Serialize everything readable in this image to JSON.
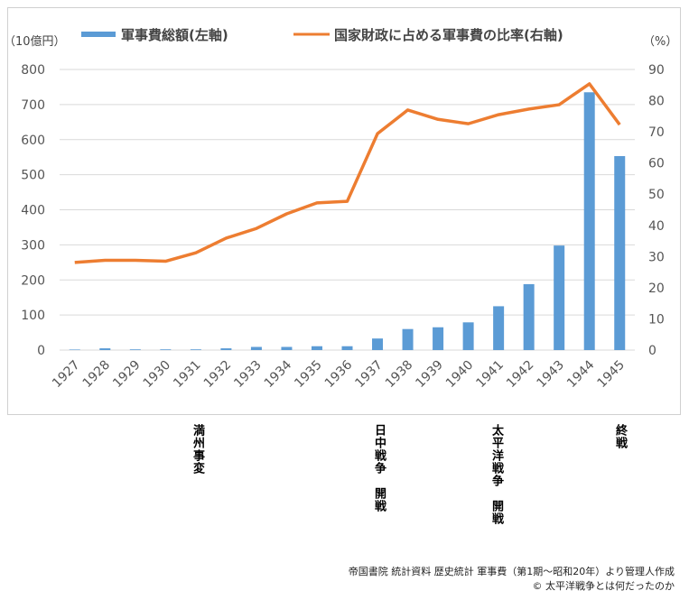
{
  "chart_data": {
    "type": "bar+line",
    "categories": [
      "1927",
      "1928",
      "1929",
      "1930",
      "1931",
      "1932",
      "1933",
      "1934",
      "1935",
      "1936",
      "1937",
      "1938",
      "1939",
      "1940",
      "1941",
      "1942",
      "1943",
      "1944",
      "1945"
    ],
    "series": [
      {
        "name": "軍事費総額(左軸)",
        "type": "bar",
        "axis": "left",
        "color": "#5b9bd5",
        "values": [
          1.5,
          5,
          2,
          2,
          2,
          5,
          9,
          9,
          11,
          11,
          33,
          60,
          65,
          79,
          125,
          188,
          298,
          735,
          553
        ]
      },
      {
        "name": "国家財政に占める軍事費の比率(右軸)",
        "type": "line",
        "axis": "right",
        "color": "#ed7d31",
        "values": [
          28.1,
          28.8,
          28.8,
          28.5,
          31.2,
          35.9,
          39,
          43.7,
          47.2,
          47.7,
          69.4,
          77,
          74,
          72.6,
          75.5,
          77.3,
          78.7,
          85.4,
          72.3
        ]
      }
    ],
    "left_axis": {
      "label": "（10億円）",
      "ylim": [
        0,
        800
      ],
      "ticks": [
        "0",
        "100",
        "200",
        "300",
        "400",
        "500",
        "600",
        "700",
        "800"
      ]
    },
    "right_axis": {
      "label": "（%）",
      "ylim": [
        0,
        90
      ],
      "ticks": [
        "0",
        "10",
        "20",
        "30",
        "40",
        "50",
        "60",
        "70",
        "80",
        "90"
      ]
    },
    "grid": true,
    "legend_position": "top"
  },
  "annotations": [
    {
      "text": "満州事変",
      "year": "1931"
    },
    {
      "text": "日中戦争　開戦",
      "year": "1937"
    },
    {
      "text": "太平洋戦争　開戦",
      "year": "1941"
    },
    {
      "text": "終戦",
      "year": "1945"
    }
  ],
  "source": "帝国書院 統計資料 歴史統計 軍事費（第1期～昭和20年）より管理人作成",
  "copyright": "© 太平洋戦争とは何だったのか"
}
